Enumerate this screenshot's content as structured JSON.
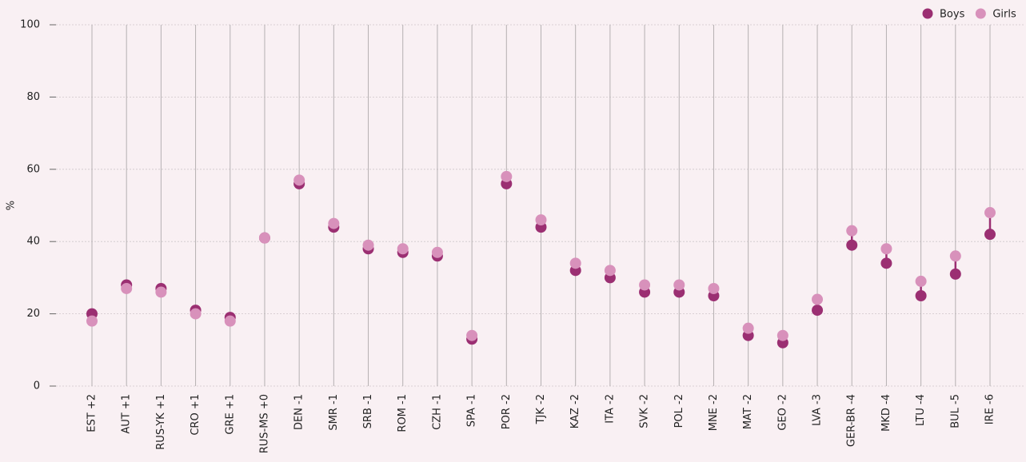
{
  "chart_data": {
    "type": "dot",
    "y_label": "%",
    "categories": [
      "EST +2",
      "AUT +1",
      "RUS-YK +1",
      "CRO +1",
      "GRE +1",
      "RUS-MS +0",
      "DEN -1",
      "SMR -1",
      "SRB -1",
      "ROM -1",
      "CZH -1",
      "SPA -1",
      "POR -2",
      "TJK -2",
      "KAZ -2",
      "ITA -2",
      "SVK -2",
      "POL -2",
      "MNE -2",
      "MAT -2",
      "GEO -2",
      "LVA -3",
      "GER-BR -4",
      "MKD -4",
      "LTU -4",
      "BUL -5",
      "IRE -6"
    ],
    "series": [
      {
        "name": "Boys",
        "color": "#9b2f72",
        "values": [
          20,
          28,
          27,
          21,
          19,
          41,
          56,
          44,
          38,
          37,
          36,
          13,
          56,
          44,
          32,
          30,
          26,
          26,
          25,
          14,
          12,
          21,
          39,
          34,
          25,
          31,
          42
        ]
      },
      {
        "name": "Girls",
        "color": "#d891bb",
        "values": [
          18,
          27,
          26,
          20,
          18,
          41,
          57,
          45,
          39,
          38,
          37,
          14,
          58,
          46,
          34,
          32,
          28,
          28,
          27,
          16,
          14,
          24,
          43,
          38,
          29,
          36,
          48
        ]
      }
    ],
    "ylim": [
      0,
      100
    ],
    "yticks": [
      0,
      20,
      40,
      60,
      80,
      100
    ],
    "grid": true,
    "legend": "top-right"
  }
}
